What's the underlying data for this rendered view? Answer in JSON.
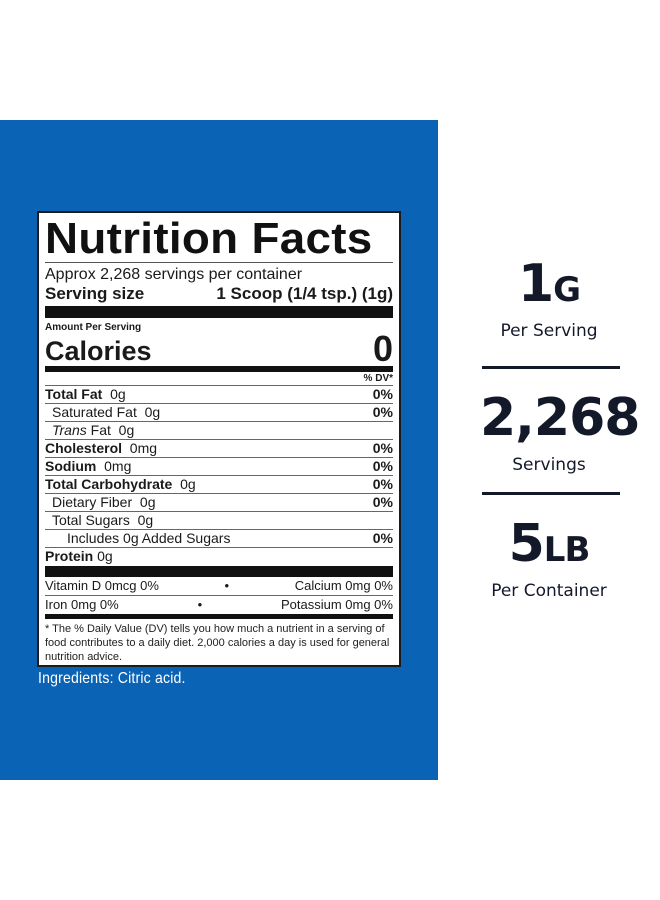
{
  "panel": {
    "background_color": "#0b63b5"
  },
  "label": {
    "title": "Nutrition Facts",
    "servings_per_container": "Approx 2,268 servings per container",
    "serving_size_label": "Serving size",
    "serving_size_value": "1 Scoop (1/4 tsp.) (1g)",
    "amount_per_serving": "Amount Per Serving",
    "calories_label": "Calories",
    "calories_value": "0",
    "dv_header": "% DV*",
    "nutrients": [
      {
        "name": "Total Fat",
        "amount": "0g",
        "dv": "0%"
      },
      {
        "name": "Saturated Fat",
        "amount": "0g",
        "dv": "0%"
      },
      {
        "name": "Trans",
        "name_suffix": "Fat",
        "amount": "0g",
        "dv": ""
      },
      {
        "name": "Cholesterol",
        "amount": "0mg",
        "dv": "0%"
      },
      {
        "name": "Sodium",
        "amount": "0mg",
        "dv": "0%"
      },
      {
        "name": "Total Carbohydrate",
        "amount": "0g",
        "dv": "0%"
      },
      {
        "name": "Dietary Fiber",
        "amount": "0g",
        "dv": "0%"
      },
      {
        "name": "Total Sugars",
        "amount": "0g",
        "dv": ""
      },
      {
        "name": "Includes 0g Added Sugars",
        "amount": "",
        "dv": "0%"
      },
      {
        "name": "Protein",
        "amount": "0g",
        "dv": ""
      }
    ],
    "vitamins": [
      {
        "left": "Vitamin D  0mcg  0%",
        "dot": "•",
        "right": "Calcium  0mg  0%"
      },
      {
        "left": "Iron  0mg  0%",
        "dot": "•",
        "right": "Potassium  0mg  0%"
      }
    ],
    "footnote": "* The % Daily Value (DV) tells you how much a nutrient in a serving of food contributes to a daily diet. 2,000 calories a day is used for general nutrition advice."
  },
  "ingredients": "Ingredients: Citric acid.",
  "stats": [
    {
      "value": "1",
      "unit": "G",
      "label": "Per Serving"
    },
    {
      "value": "2,268",
      "unit": "",
      "label": "Servings"
    },
    {
      "value": "5",
      "unit": "LB",
      "label": "Per Container"
    }
  ]
}
